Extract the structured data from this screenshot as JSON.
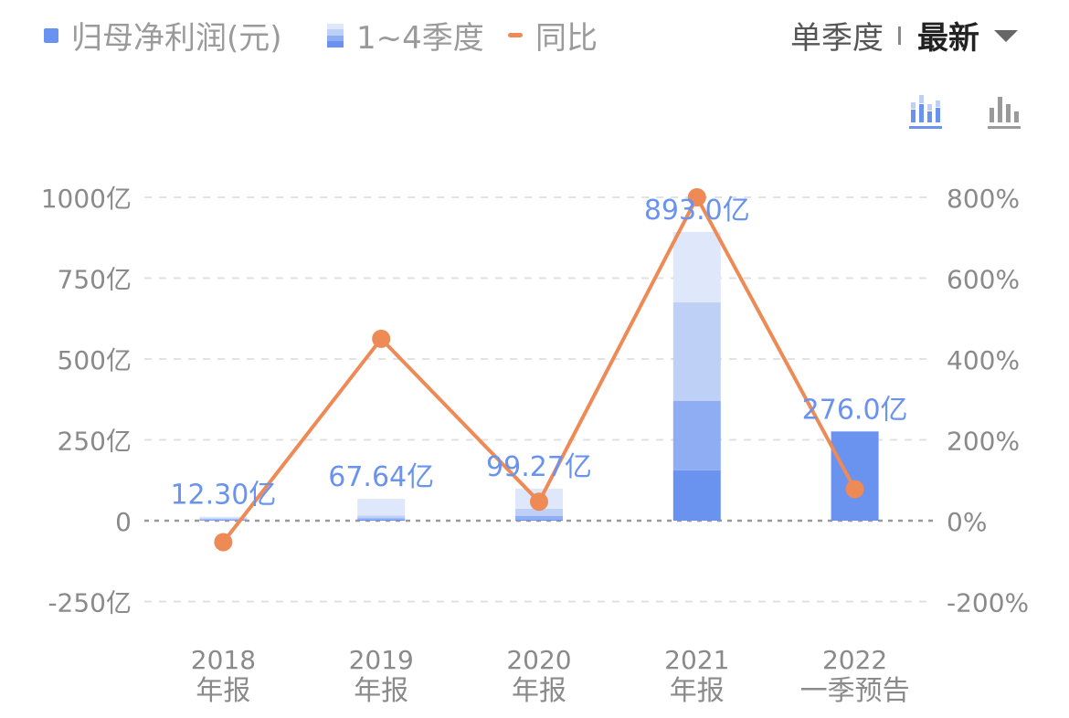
{
  "legend": {
    "net_profit": "归母净利润(元)",
    "quarters": "1~4季度",
    "yoy": "同比"
  },
  "period": {
    "label": "单季度",
    "selected": "最新"
  },
  "colors": {
    "bar_primary": "#6a93ef",
    "q1": "#6a93ef",
    "q2": "#8fadf3",
    "q3": "#bfd0f7",
    "q4": "#dfe7fb",
    "line": "#ee8a55",
    "value_label": "#6a93ef",
    "axis_text": "#8a8a8a",
    "grid": "#e2e2e2",
    "zero_line": "#999999"
  },
  "icons": [
    "stacked-bar-chart-icon",
    "bar-chart-icon"
  ],
  "chart_data": {
    "type": "bar",
    "categories": [
      {
        "year": "2018",
        "period": "年报"
      },
      {
        "year": "2019",
        "period": "年报"
      },
      {
        "year": "2020",
        "period": "年报"
      },
      {
        "year": "2021",
        "period": "年报"
      },
      {
        "year": "2022",
        "period": "一季预告"
      }
    ],
    "bar_labels": [
      "12.30亿",
      "67.64亿",
      "99.27亿",
      "893.0亿",
      "276.0亿"
    ],
    "series": [
      {
        "name": "归母净利润(元)",
        "values": [
          12.3,
          67.64,
          99.27,
          893.0,
          276.0
        ],
        "unit": "亿"
      },
      {
        "name": "同比",
        "values": [
          -53,
          450,
          47,
          800,
          78
        ],
        "unit": "%"
      }
    ],
    "quarter_stacks": [
      [
        2,
        3,
        3,
        4.3
      ],
      [
        3,
        5,
        8,
        51.64
      ],
      [
        3,
        12,
        22,
        62.27
      ],
      [
        156,
        214,
        305,
        218
      ],
      [
        276
      ]
    ],
    "y_left": {
      "ticks": [
        "1000亿",
        "750亿",
        "500亿",
        "250亿",
        "0",
        "-250亿"
      ],
      "values": [
        1000,
        750,
        500,
        250,
        0,
        -250
      ],
      "range": [
        -250,
        1000
      ]
    },
    "y_right": {
      "ticks": [
        "800%",
        "600%",
        "400%",
        "200%",
        "0%",
        "-200%"
      ],
      "values": [
        800,
        600,
        400,
        200,
        0,
        -200
      ],
      "range": [
        -200,
        800
      ]
    },
    "grid": true
  }
}
